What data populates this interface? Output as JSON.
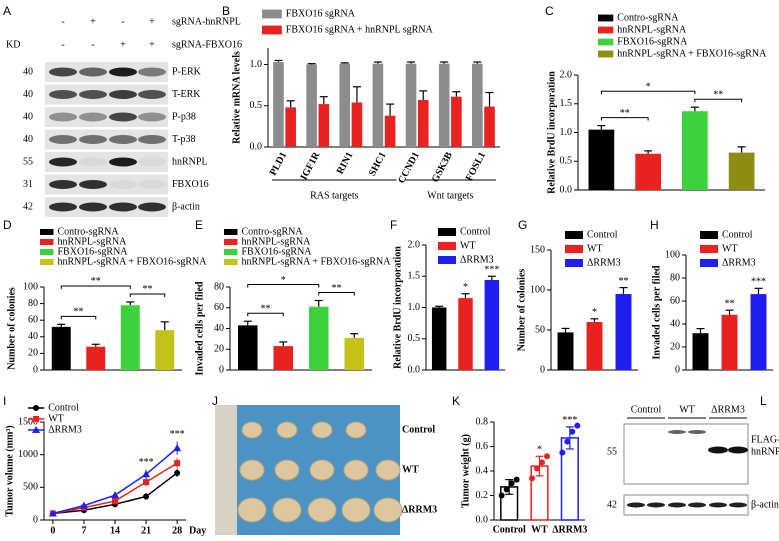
{
  "panel_a": {
    "panel": "A",
    "header_rows": [
      {
        "signs": [
          "-",
          "+",
          "-",
          "+"
        ],
        "label": "sgRNA-hnRNPL"
      },
      {
        "lead": "KD",
        "signs": [
          "-",
          "-",
          "+",
          "+"
        ],
        "label": "sgRNA-FBXO16"
      }
    ],
    "rows": [
      {
        "mw": 40,
        "label": "P-ERK"
      },
      {
        "mw": 40,
        "label": "T-ERK"
      },
      {
        "mw": 40,
        "label": "P-p38"
      },
      {
        "mw": 40,
        "label": "T-p38"
      },
      {
        "mw": 55,
        "label": "hnRNPL"
      },
      {
        "mw": 31,
        "label": "FBXO16"
      },
      {
        "mw": 42,
        "label": "β-actin"
      }
    ]
  },
  "chart_data": [
    {
      "panel": "B",
      "type": "bar",
      "y_label": "Relative mRNA levels",
      "legend": "top",
      "categories": [
        "PLD1",
        "IGF1R",
        "RIN1",
        "SHC1",
        "CCND1",
        "GSK3B",
        "FOSL1"
      ],
      "series": [
        {
          "name": "FBXO16 sgRNA",
          "color": "#8c8c8c",
          "values": [
            1.03,
            1.0,
            1.01,
            1.01,
            1.01,
            1.01,
            1.01
          ],
          "errors": [
            0.02,
            0.01,
            0.01,
            0.02,
            0.02,
            0.02,
            0.02
          ]
        },
        {
          "name": "FBXO16 sgRNA + hnRNPL sgRNA",
          "color": "#e8231f",
          "values": [
            0.48,
            0.52,
            0.54,
            0.38,
            0.57,
            0.61,
            0.49
          ],
          "errors": [
            0.08,
            0.09,
            0.19,
            0.14,
            0.11,
            0.06,
            0.17
          ]
        }
      ],
      "ylim": [
        0,
        1.2
      ],
      "yticks": [
        {
          "value": 0,
          "label": "0.0"
        },
        {
          "value": 0.5,
          "label": "0.5"
        },
        {
          "value": 1,
          "label": "1.0"
        }
      ],
      "groups": [
        {
          "label": "RAS targets",
          "range": [
            0,
            3
          ]
        },
        {
          "label": "Wnt targets",
          "range": [
            4,
            6
          ]
        }
      ]
    },
    {
      "panel": "C",
      "type": "bar",
      "y_label": "Relative BrdU incorporation",
      "legend": "top-right",
      "categories": [
        "Contro-sgRNA",
        "hnRNPL-sgRNA",
        "FBXO16-sgRNA",
        "hnRNPL-sgRNA + FBXO16-sgRNA"
      ],
      "colors": [
        "#000000",
        "#e8231f",
        "#3dd13d",
        "#8d8d12"
      ],
      "values": [
        1.05,
        0.63,
        1.37,
        0.65
      ],
      "errors": [
        0.07,
        0.05,
        0.07,
        0.1
      ],
      "ylim": [
        0,
        2
      ],
      "yticks": [
        {
          "value": 0,
          "label": "0.0"
        },
        {
          "value": 0.5,
          "label": "0.5"
        },
        {
          "value": 1,
          "label": "1.0"
        },
        {
          "value": 1.5,
          "label": "1.5"
        },
        {
          "value": 2,
          "label": "2.0"
        }
      ],
      "brackets": [
        {
          "text": "**",
          "pair": [
            0,
            1
          ]
        },
        {
          "text": "*",
          "pair": [
            0,
            2
          ]
        },
        {
          "text": "**",
          "pair": [
            2,
            3
          ]
        }
      ]
    },
    {
      "panel": "D",
      "type": "bar",
      "y_label": "Number of colonies",
      "legend": "top-left",
      "categories": [
        "Contro-sgRNA",
        "hnRNPL-sgRNA",
        "FBXO16-sgRNA",
        "hnRNPL-sgRNA + FBXO16-sgRNA"
      ],
      "colors": [
        "#000000",
        "#e8231f",
        "#3dd13d",
        "#c2c21a"
      ],
      "values": [
        52,
        28,
        78,
        48
      ],
      "errors": [
        3,
        3,
        4,
        10
      ],
      "ylim": [
        0,
        100
      ],
      "yticks": [
        0,
        20,
        40,
        60,
        80,
        100
      ],
      "brackets": [
        {
          "text": "**",
          "pair": [
            0,
            1
          ]
        },
        {
          "text": "**",
          "pair": [
            0,
            2
          ]
        },
        {
          "text": "**",
          "pair": [
            2,
            3
          ]
        }
      ]
    },
    {
      "panel": "E",
      "type": "bar",
      "y_label": "Invaded cells per filed",
      "legend": "top-left",
      "categories": [
        "Contro-sgRNA",
        "hnRNPL-sgRNA",
        "FBXO16-sgRNA",
        "hnRNPL-sgRNA + FBXO16-sgRNA"
      ],
      "colors": [
        "#000000",
        "#e8231f",
        "#3dd13d",
        "#c2c21a"
      ],
      "values": [
        43,
        23,
        61,
        31
      ],
      "errors": [
        4,
        4,
        6,
        4
      ],
      "ylim": [
        0,
        80
      ],
      "yticks": [
        0,
        20,
        40,
        60,
        80
      ],
      "brackets": [
        {
          "text": "**",
          "pair": [
            0,
            1
          ]
        },
        {
          "text": "*",
          "pair": [
            0,
            2
          ]
        },
        {
          "text": "**",
          "pair": [
            2,
            3
          ]
        }
      ]
    },
    {
      "panel": "F",
      "type": "bar",
      "y_label": "Relative BrdU incorporation",
      "legend": "top-right",
      "categories": [
        "Control",
        "WT",
        "ΔRRM3"
      ],
      "colors": [
        "#000000",
        "#e8231f",
        "#1f1ff0"
      ],
      "values": [
        1.0,
        1.15,
        1.44
      ],
      "errors": [
        0.02,
        0.07,
        0.06
      ],
      "ylim": [
        0,
        2
      ],
      "yticks": [
        {
          "value": 0,
          "label": "0.0"
        },
        {
          "value": 0.5,
          "label": "0.5"
        },
        {
          "value": 1,
          "label": "1.0"
        },
        {
          "value": 1.5,
          "label": "1.5"
        },
        {
          "value": 2,
          "label": "2.0"
        }
      ],
      "significance": [
        null,
        "*",
        "***"
      ]
    },
    {
      "panel": "G",
      "type": "bar",
      "y_label": "Number of colonies",
      "legend": "top-right",
      "categories": [
        "Control",
        "WT",
        "ΔRRM3"
      ],
      "colors": [
        "#000000",
        "#e8231f",
        "#1f1ff0"
      ],
      "values": [
        47,
        60,
        95
      ],
      "errors": [
        5,
        4,
        8
      ],
      "ylim": [
        0,
        150
      ],
      "yticks": [
        0,
        50,
        100,
        150
      ],
      "significance": [
        null,
        "*",
        "**"
      ]
    },
    {
      "panel": "H",
      "type": "bar",
      "y_label": "Invaded cells per filed",
      "legend": "top-right",
      "categories": [
        "Control",
        "WT",
        "ΔRRM3"
      ],
      "colors": [
        "#000000",
        "#e8231f",
        "#1f1ff0"
      ],
      "values": [
        32,
        48,
        66
      ],
      "errors": [
        4,
        4,
        5
      ],
      "ylim": [
        0,
        100
      ],
      "yticks": [
        0,
        20,
        40,
        60,
        80,
        100
      ],
      "significance": [
        null,
        "**",
        "***"
      ]
    },
    {
      "panel": "I",
      "type": "line",
      "y_label": "Tumor volume (mm³)",
      "x_label": "Day",
      "legend": "top-left",
      "x": [
        0,
        7,
        14,
        21,
        28
      ],
      "series": [
        {
          "name": "Control",
          "color": "#000000",
          "marker": "circle",
          "values": [
            100,
            150,
            240,
            360,
            720
          ],
          "errors": [
            10,
            15,
            25,
            50,
            60
          ]
        },
        {
          "name": "WT",
          "color": "#e8231f",
          "marker": "square",
          "values": [
            100,
            190,
            290,
            580,
            870
          ],
          "errors": [
            10,
            20,
            30,
            60,
            80
          ]
        },
        {
          "name": "ΔRRM3",
          "color": "#1f1ff0",
          "marker": "triangle",
          "values": [
            100,
            220,
            380,
            700,
            1100
          ],
          "errors": [
            10,
            20,
            40,
            70,
            100
          ]
        }
      ],
      "xlim": [
        -2,
        30
      ],
      "xticks": [
        0,
        7,
        14,
        21,
        28
      ],
      "ylim": [
        0,
        1500
      ],
      "yticks": [
        0,
        500,
        1000,
        1500
      ],
      "significance": [
        null,
        null,
        null,
        "***",
        "***"
      ]
    },
    {
      "panel": "K",
      "type": "bar",
      "style": "outline",
      "y_label": "Tumor weight (g)",
      "categories": [
        "Control",
        "WT",
        "ΔRRM3"
      ],
      "colors": [
        "#000000",
        "#e8231f",
        "#1f1ff0"
      ],
      "values": [
        0.27,
        0.44,
        0.67
      ],
      "errors": [
        0.06,
        0.08,
        0.09
      ],
      "points": [
        [
          0.2,
          0.25,
          0.3,
          0.33
        ],
        [
          0.34,
          0.42,
          0.47,
          0.52
        ],
        [
          0.55,
          0.64,
          0.72,
          0.77
        ]
      ],
      "ylim": [
        0,
        0.8
      ],
      "yticks": [
        {
          "value": 0,
          "label": "0.0"
        },
        {
          "value": 0.2,
          "label": "0.2"
        },
        {
          "value": 0.4,
          "label": "0.4"
        },
        {
          "value": 0.6,
          "label": "0.6"
        },
        {
          "value": 0.8,
          "label": "0.8"
        }
      ],
      "significance": [
        null,
        "*",
        "***"
      ]
    }
  ],
  "panel_j": {
    "panel": "J",
    "labels": [
      "Control",
      "WT",
      "ΔRRM3"
    ]
  },
  "panel_l": {
    "panel": "L",
    "lanes": [
      "Control",
      "WT",
      "ΔRRM3"
    ],
    "rows": [
      {
        "mw": 55,
        "label": [
          "FLAG-",
          "hnRNPLs"
        ]
      },
      {
        "mw": 42,
        "label": "β-actin"
      }
    ]
  }
}
